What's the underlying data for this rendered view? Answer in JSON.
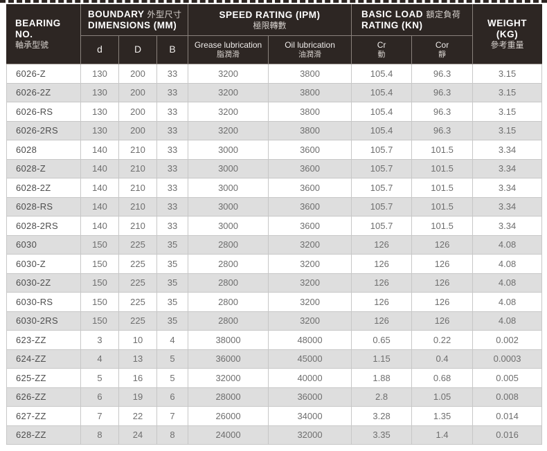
{
  "table": {
    "header": {
      "bearing": {
        "en_line1": "BEARING",
        "en_line2": "NO.",
        "zh": "軸承型號"
      },
      "boundary": {
        "en1": "BOUNDARY",
        "zh": "外型尺寸",
        "en2": "DIMENSIONS (MM)",
        "sub": [
          "d",
          "D",
          "B"
        ]
      },
      "speed": {
        "en": "SPEED RATING (IPM)",
        "zh": "極限轉數",
        "sub": [
          {
            "en": "Grease lubrication",
            "zh": "脂潤滑"
          },
          {
            "en": "Oil lubrication",
            "zh": "油潤滑"
          }
        ]
      },
      "load": {
        "en1": "BASIC LOAD",
        "zh": "額定負荷",
        "en2": "RATING (KN)",
        "sub": [
          {
            "en": "Cr",
            "zh": "動"
          },
          {
            "en": "Cor",
            "zh": "靜"
          }
        ]
      },
      "weight": {
        "en": "WEIGHT (KG)",
        "zh": "參考重量"
      }
    },
    "rows": [
      {
        "bearing_no": "6026-Z",
        "d": "130",
        "D": "200",
        "B": "33",
        "grease": "3200",
        "oil": "3800",
        "cr": "105.4",
        "cor": "96.3",
        "weight": "3.15"
      },
      {
        "bearing_no": "6026-2Z",
        "d": "130",
        "D": "200",
        "B": "33",
        "grease": "3200",
        "oil": "3800",
        "cr": "105.4",
        "cor": "96.3",
        "weight": "3.15"
      },
      {
        "bearing_no": "6026-RS",
        "d": "130",
        "D": "200",
        "B": "33",
        "grease": "3200",
        "oil": "3800",
        "cr": "105.4",
        "cor": "96.3",
        "weight": "3.15"
      },
      {
        "bearing_no": "6026-2RS",
        "d": "130",
        "D": "200",
        "B": "33",
        "grease": "3200",
        "oil": "3800",
        "cr": "105.4",
        "cor": "96.3",
        "weight": "3.15"
      },
      {
        "bearing_no": "6028",
        "d": "140",
        "D": "210",
        "B": "33",
        "grease": "3000",
        "oil": "3600",
        "cr": "105.7",
        "cor": "101.5",
        "weight": "3.34"
      },
      {
        "bearing_no": "6028-Z",
        "d": "140",
        "D": "210",
        "B": "33",
        "grease": "3000",
        "oil": "3600",
        "cr": "105.7",
        "cor": "101.5",
        "weight": "3.34"
      },
      {
        "bearing_no": "6028-2Z",
        "d": "140",
        "D": "210",
        "B": "33",
        "grease": "3000",
        "oil": "3600",
        "cr": "105.7",
        "cor": "101.5",
        "weight": "3.34"
      },
      {
        "bearing_no": "6028-RS",
        "d": "140",
        "D": "210",
        "B": "33",
        "grease": "3000",
        "oil": "3600",
        "cr": "105.7",
        "cor": "101.5",
        "weight": "3.34"
      },
      {
        "bearing_no": "6028-2RS",
        "d": "140",
        "D": "210",
        "B": "33",
        "grease": "3000",
        "oil": "3600",
        "cr": "105.7",
        "cor": "101.5",
        "weight": "3.34"
      },
      {
        "bearing_no": "6030",
        "d": "150",
        "D": "225",
        "B": "35",
        "grease": "2800",
        "oil": "3200",
        "cr": "126",
        "cor": "126",
        "weight": "4.08"
      },
      {
        "bearing_no": "6030-Z",
        "d": "150",
        "D": "225",
        "B": "35",
        "grease": "2800",
        "oil": "3200",
        "cr": "126",
        "cor": "126",
        "weight": "4.08"
      },
      {
        "bearing_no": "6030-2Z",
        "d": "150",
        "D": "225",
        "B": "35",
        "grease": "2800",
        "oil": "3200",
        "cr": "126",
        "cor": "126",
        "weight": "4.08"
      },
      {
        "bearing_no": "6030-RS",
        "d": "150",
        "D": "225",
        "B": "35",
        "grease": "2800",
        "oil": "3200",
        "cr": "126",
        "cor": "126",
        "weight": "4.08"
      },
      {
        "bearing_no": "6030-2RS",
        "d": "150",
        "D": "225",
        "B": "35",
        "grease": "2800",
        "oil": "3200",
        "cr": "126",
        "cor": "126",
        "weight": "4.08"
      },
      {
        "bearing_no": "623-ZZ",
        "d": "3",
        "D": "10",
        "B": "4",
        "grease": "38000",
        "oil": "48000",
        "cr": "0.65",
        "cor": "0.22",
        "weight": "0.002"
      },
      {
        "bearing_no": "624-ZZ",
        "d": "4",
        "D": "13",
        "B": "5",
        "grease": "36000",
        "oil": "45000",
        "cr": "1.15",
        "cor": "0.4",
        "weight": "0.0003"
      },
      {
        "bearing_no": "625-ZZ",
        "d": "5",
        "D": "16",
        "B": "5",
        "grease": "32000",
        "oil": "40000",
        "cr": "1.88",
        "cor": "0.68",
        "weight": "0.005"
      },
      {
        "bearing_no": "626-ZZ",
        "d": "6",
        "D": "19",
        "B": "6",
        "grease": "28000",
        "oil": "36000",
        "cr": "2.8",
        "cor": "1.05",
        "weight": "0.008"
      },
      {
        "bearing_no": "627-ZZ",
        "d": "7",
        "D": "22",
        "B": "7",
        "grease": "26000",
        "oil": "34000",
        "cr": "3.28",
        "cor": "1.35",
        "weight": "0.014"
      },
      {
        "bearing_no": "628-ZZ",
        "d": "8",
        "D": "24",
        "B": "8",
        "grease": "24000",
        "oil": "32000",
        "cr": "3.35",
        "cor": "1.4",
        "weight": "0.016"
      }
    ],
    "colors": {
      "header_bg": "#2d2623",
      "stripe": "#dedede",
      "grid": "#c7c7c7",
      "header_grid": "#8a827d",
      "data_text": "#6e6e6e"
    }
  }
}
